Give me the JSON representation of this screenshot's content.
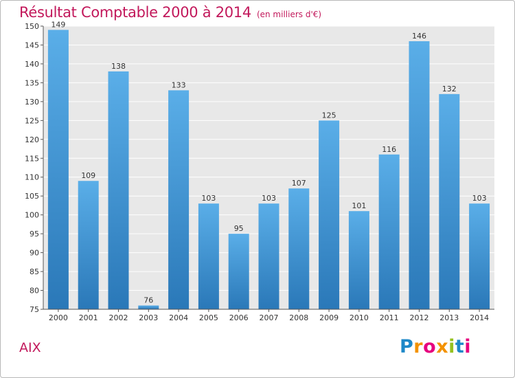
{
  "header": {
    "title": "Résultat Comptable 2000 à 2014",
    "subtitle": "(en milliers d'€)"
  },
  "footer": {
    "place": "AIX",
    "logo_letters": [
      {
        "ch": "P",
        "color": "#1e88c8"
      },
      {
        "ch": "r",
        "color": "#f39200"
      },
      {
        "ch": "o",
        "color": "#e6007e"
      },
      {
        "ch": "x",
        "color": "#f39200"
      },
      {
        "ch": "i",
        "color": "#95c11f"
      },
      {
        "ch": "t",
        "color": "#1e88c8"
      },
      {
        "ch": "i",
        "color": "#e6007e"
      }
    ]
  },
  "chart_data": {
    "type": "bar",
    "title": "Résultat Comptable 2000 à 2014",
    "subtitle": "(en milliers d'€)",
    "categories": [
      "2000",
      "2001",
      "2002",
      "2003",
      "2004",
      "2005",
      "2006",
      "2007",
      "2008",
      "2009",
      "2010",
      "2011",
      "2012",
      "2013",
      "2014"
    ],
    "values": [
      149,
      109,
      138,
      76,
      133,
      103,
      95,
      103,
      107,
      125,
      101,
      116,
      146,
      132,
      103
    ],
    "ylim": [
      75,
      150
    ],
    "yticks": [
      75,
      80,
      85,
      90,
      95,
      100,
      105,
      110,
      115,
      120,
      125,
      130,
      135,
      140,
      145,
      150
    ],
    "grid": true,
    "bar_color_top": "#5aaee8",
    "bar_color_bottom": "#2a78b8",
    "background": "#e8e8e8"
  }
}
